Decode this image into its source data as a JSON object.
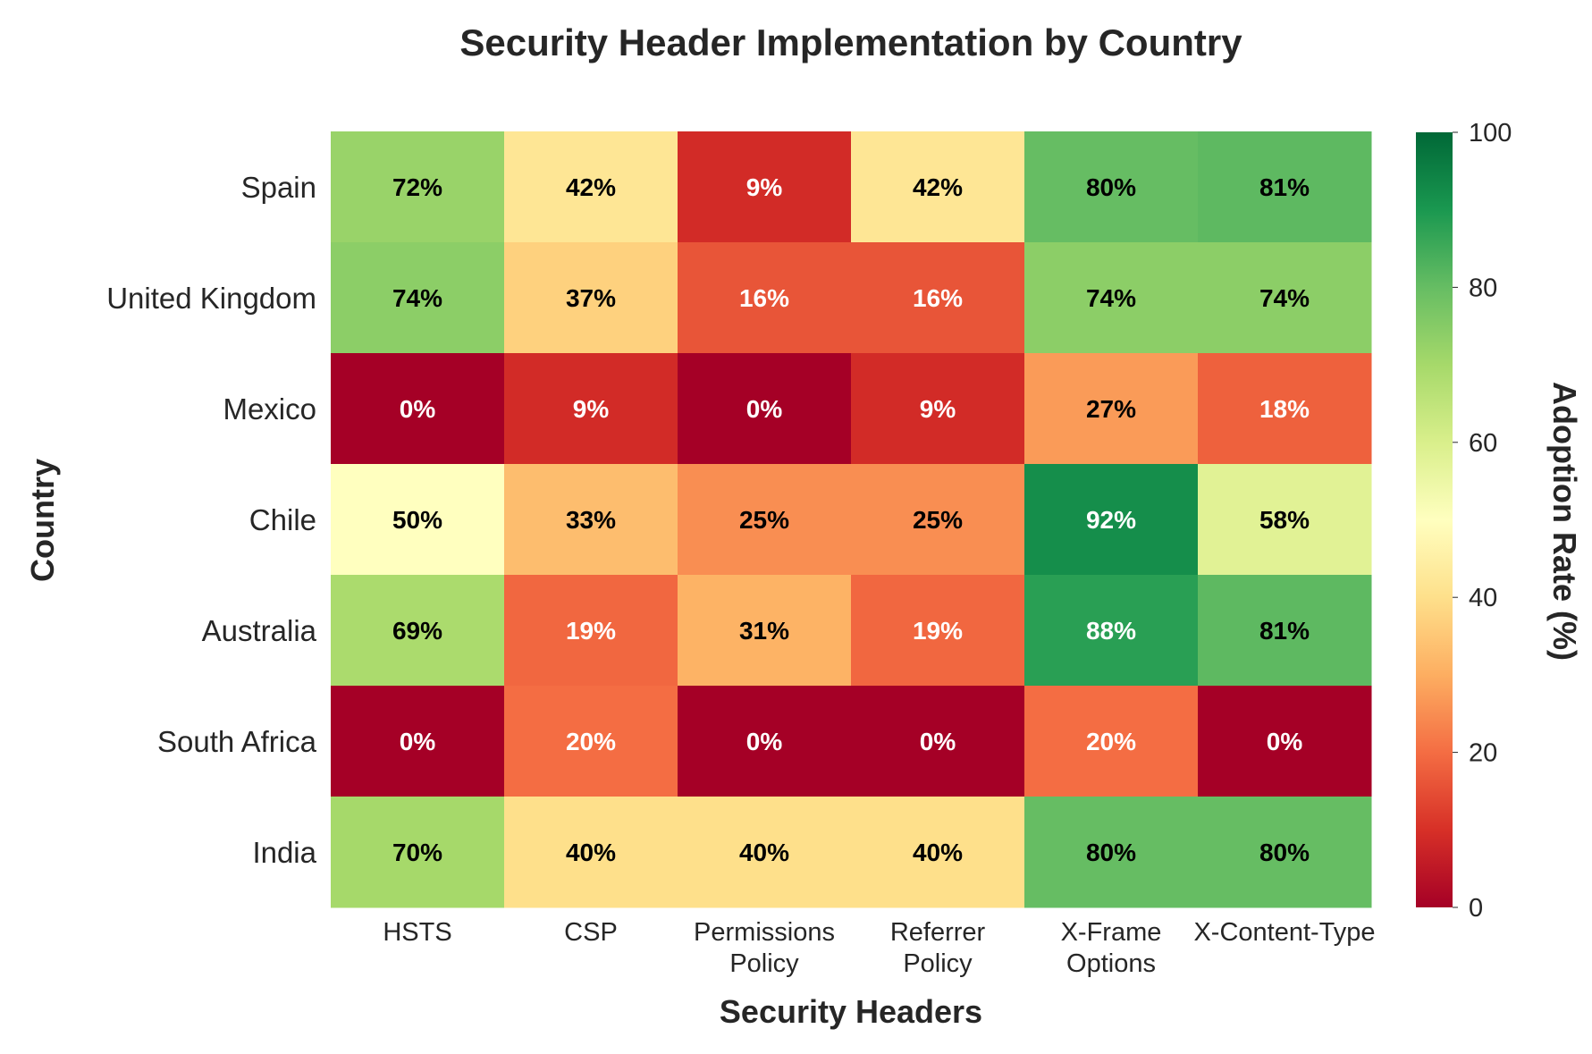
{
  "chart_data": {
    "type": "heatmap",
    "title": "Security Header Implementation by Country",
    "xlabel": "Security Headers",
    "ylabel": "Country",
    "colorbar_label": "Adoption Rate (%)",
    "colormap": "RdYlGn",
    "value_range": [
      0,
      100
    ],
    "colorbar_ticks": [
      "0",
      "20",
      "40",
      "60",
      "80",
      "100"
    ],
    "x_categories": [
      [
        "HSTS"
      ],
      [
        "CSP"
      ],
      [
        "Permissions",
        "Policy"
      ],
      [
        "Referrer",
        "Policy"
      ],
      [
        "X-Frame",
        "Options"
      ],
      [
        "X-Content-Type"
      ]
    ],
    "y_categories": [
      "Spain",
      "United Kingdom",
      "Mexico",
      "Chile",
      "Australia",
      "South Africa",
      "India"
    ],
    "values": [
      [
        72,
        42,
        9,
        42,
        80,
        81
      ],
      [
        74,
        37,
        16,
        16,
        74,
        74
      ],
      [
        0,
        9,
        0,
        9,
        27,
        18
      ],
      [
        50,
        33,
        25,
        25,
        92,
        58
      ],
      [
        69,
        19,
        31,
        19,
        88,
        81
      ],
      [
        0,
        20,
        0,
        0,
        20,
        0
      ],
      [
        70,
        40,
        40,
        40,
        80,
        80
      ]
    ],
    "value_suffix": "%"
  }
}
